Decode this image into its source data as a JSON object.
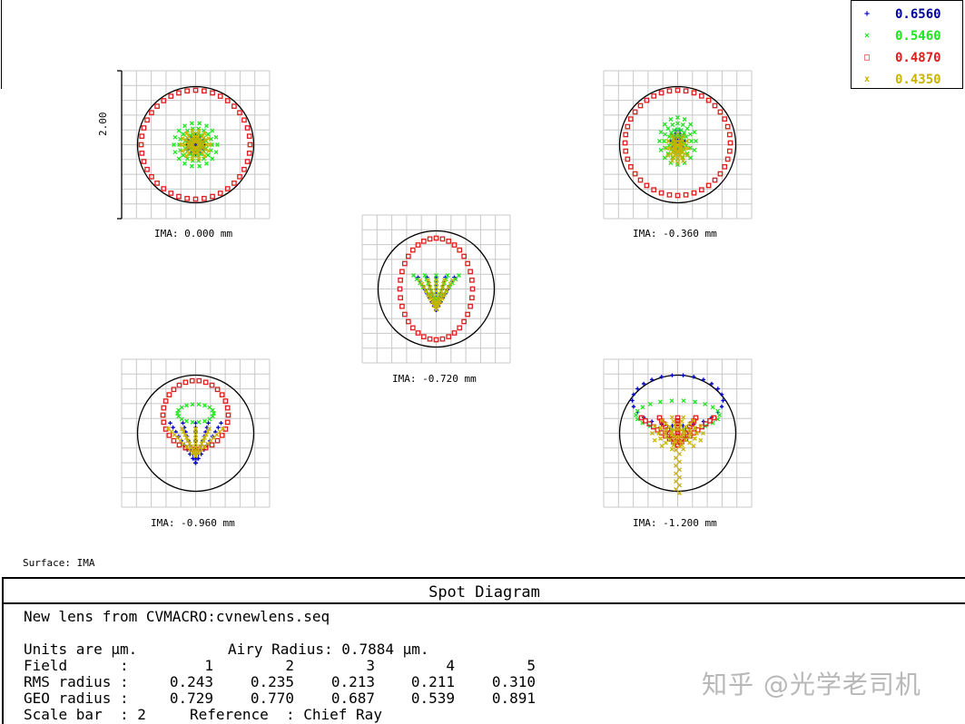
{
  "chart_data": {
    "type": "scatter",
    "title": "Spot Diagram",
    "subtitle": "New lens from CVMACRO:cvnewlens.seq",
    "surface": "Surface: IMA",
    "scale_bar_value": "2.00",
    "airy_radius": 0.7884,
    "series": [
      {
        "name": "0.6560",
        "marker": "+",
        "color": "#0000c8"
      },
      {
        "name": "0.5460",
        "marker": "×",
        "color": "#1ee61e"
      },
      {
        "name": "0.4870",
        "marker": "□",
        "color": "#dc1e1e"
      },
      {
        "name": "0.4350",
        "marker": "x",
        "color": "#c8b400"
      }
    ],
    "fields": [
      {
        "field": 1,
        "label": "IMA: 0.000 mm",
        "rms": 0.243,
        "geo": 0.729
      },
      {
        "field": 2,
        "label": "IMA: -0.360 mm",
        "rms": 0.235,
        "geo": 0.77
      },
      {
        "field": 3,
        "label": "IMA: -0.720 mm",
        "rms": 0.213,
        "geo": 0.687
      },
      {
        "field": 4,
        "label": "IMA: -0.960 mm",
        "rms": 0.211,
        "geo": 0.539
      },
      {
        "field": 5,
        "label": "IMA: -1.200 mm",
        "rms": 0.31,
        "geo": 0.891
      }
    ],
    "grid": true,
    "legend_position": "top-right"
  },
  "info": {
    "title": "Spot Diagram",
    "lens_name": "New lens from CVMACRO:cvnewlens.seq",
    "units_text": "Units are µm.",
    "airy_text": "Airy Radius: 0.7884 µm.",
    "field_label": "Field      :",
    "rms_label": "RMS radius :",
    "geo_label": "GEO radius :",
    "field_numbers": [
      "1",
      "2",
      "3",
      "4",
      "5"
    ],
    "rms_values": [
      "0.243",
      "0.235",
      "0.213",
      "0.211",
      "0.310"
    ],
    "geo_values": [
      "0.729",
      "0.770",
      "0.687",
      "0.539",
      "0.891"
    ],
    "scale_bar_text": "Scale bar  : 2     Reference  : Chief Ray"
  },
  "watermark": "知乎 @光学老司机"
}
